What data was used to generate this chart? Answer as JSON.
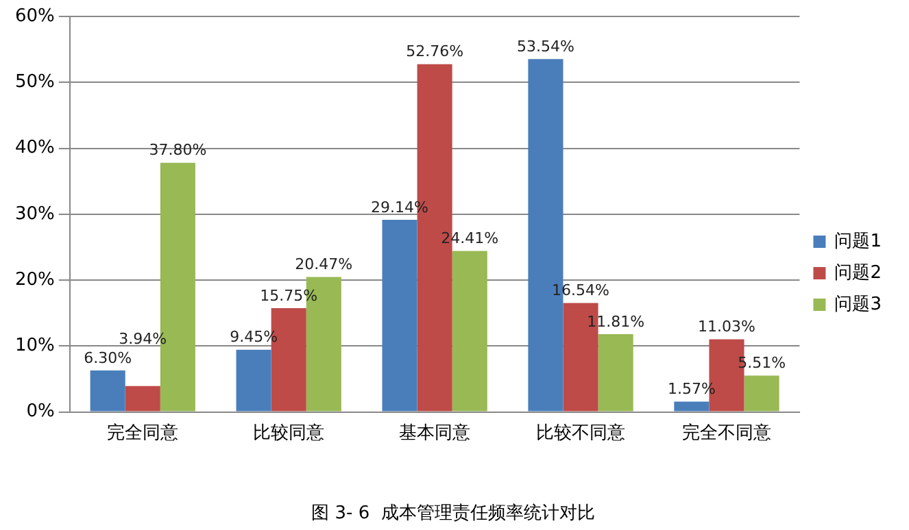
{
  "chart_data": {
    "type": "bar",
    "categories": [
      "完全同意",
      "比较同意",
      "基本同意",
      "比较不同意",
      "完全不同意"
    ],
    "series": [
      {
        "name": "问题1",
        "color": "#4a7ebb",
        "values": [
          6.3,
          9.45,
          29.14,
          53.54,
          1.57
        ],
        "value_labels": [
          "6.30%",
          "9.45%",
          "29.14%",
          "53.54%",
          "1.57%"
        ]
      },
      {
        "name": "问题2",
        "color": "#be4b48",
        "values": [
          3.94,
          15.75,
          52.76,
          16.54,
          11.03
        ],
        "value_labels": [
          "3.94%",
          "15.75%",
          "52.76%",
          "16.54%",
          "11.03%"
        ]
      },
      {
        "name": "问题3",
        "color": "#98b954",
        "values": [
          37.8,
          20.47,
          24.41,
          11.81,
          5.51
        ],
        "value_labels": [
          "37.80%",
          "20.47%",
          "24.41%",
          "11.81%",
          "5.51%"
        ]
      }
    ],
    "ylim": [
      0,
      60
    ],
    "yticks": [
      {
        "value": 0,
        "label": "0%"
      },
      {
        "value": 10,
        "label": "10%"
      },
      {
        "value": 20,
        "label": "20%"
      },
      {
        "value": 30,
        "label": "30%"
      },
      {
        "value": 40,
        "label": "40%"
      },
      {
        "value": 50,
        "label": "50%"
      },
      {
        "value": 60,
        "label": "60%"
      }
    ],
    "grid": "y",
    "legend": "right",
    "annotations": [
      "图 3- 6  成本管理责任频率统计对比"
    ]
  }
}
